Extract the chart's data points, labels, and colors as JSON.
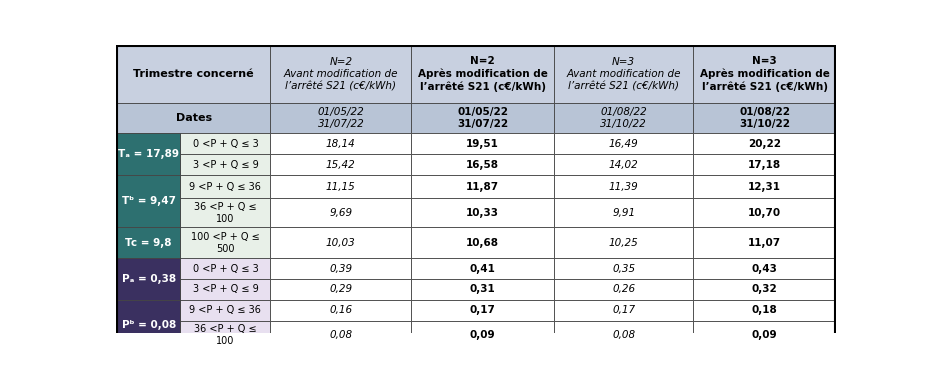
{
  "title_row_left": "Trimestre concerné",
  "title_row_cols": [
    "N=2\nAvant modification de\nl’arrêté S21 (c€/kWh)",
    "N=2\nAprès modification de\nl’arrêté S21 (c€/kWh)",
    "N=3\nAvant modification de\nl’arrêté S21 (c€/kWh)",
    "N=3\nAprès modification de\nl’arrêté S21 (c€/kWh)"
  ],
  "title_row_bold": [
    false,
    true,
    false,
    true
  ],
  "dates_left": "Dates",
  "dates_cols": [
    "01/05/22\n31/07/22",
    "01/05/22\n31/07/22",
    "01/08/22\n31/10/22",
    "01/08/22\n31/10/22"
  ],
  "dates_bold": [
    false,
    true,
    false,
    true
  ],
  "rows": [
    {
      "label": "Tₐ = 17,89",
      "sub": "0 <P + Q ≤ 3",
      "v1": "18,14",
      "v2": "19,51",
      "v3": "16,49",
      "v4": "20,22"
    },
    {
      "label": "",
      "sub": "3 <P + Q ≤ 9",
      "v1": "15,42",
      "v2": "16,58",
      "v3": "14,02",
      "v4": "17,18"
    },
    {
      "label": "Tᵇ = 9,47",
      "sub": "9 <P + Q ≤ 36",
      "v1": "11,15",
      "v2": "11,87",
      "v3": "11,39",
      "v4": "12,31"
    },
    {
      "label": "",
      "sub": "36 <P + Q ≤\n100",
      "v1": "9,69",
      "v2": "10,33",
      "v3": "9,91",
      "v4": "10,70"
    },
    {
      "label": "Tc = 9,8",
      "sub": "100 <P + Q ≤\n500",
      "v1": "10,03",
      "v2": "10,68",
      "v3": "10,25",
      "v4": "11,07"
    },
    {
      "label": "Pₐ = 0,38",
      "sub": "0 <P + Q ≤ 3",
      "v1": "0,39",
      "v2": "0,41",
      "v3": "0,35",
      "v4": "0,43"
    },
    {
      "label": "",
      "sub": "3 <P + Q ≤ 9",
      "v1": "0,29",
      "v2": "0,31",
      "v3": "0,26",
      "v4": "0,32"
    },
    {
      "label": "Pᵇ = 0,08",
      "sub": "9 <P + Q ≤ 36",
      "v1": "0,16",
      "v2": "0,17",
      "v3": "0,17",
      "v4": "0,18"
    },
    {
      "label": "",
      "sub": "36 <P + Q ≤\n100",
      "v1": "0,08",
      "v2": "0,09",
      "v3": "0,08",
      "v4": "0,09"
    }
  ],
  "label_groups": [
    {
      "label": "Tₐ = 17,89",
      "start": 0,
      "end": 1,
      "type": "T"
    },
    {
      "label": "Tᵇ = 9,47",
      "start": 2,
      "end": 3,
      "type": "T"
    },
    {
      "label": "Tc = 9,8",
      "start": 4,
      "end": 4,
      "type": "T"
    },
    {
      "label": "Pₐ = 0,38",
      "start": 5,
      "end": 6,
      "type": "P"
    },
    {
      "label": "Pᵇ = 0,08",
      "start": 7,
      "end": 8,
      "type": "P"
    }
  ],
  "header_bg": "#c8d0e0",
  "header_bold_bg": "#c8d0e0",
  "dates_bg": "#b8c4d6",
  "dates_bold_bg": "#b8c4d6",
  "label_T_bg": "#2d7070",
  "label_P_bg": "#3a3060",
  "sub_T_bg": "#e8f0e8",
  "sub_P_bg": "#e8e0f0",
  "data_normal_bg": "#ffffff",
  "data_bold_bg": "#ffffff",
  "border_color": "#555555",
  "text_white": "#ffffff",
  "text_black": "#000000"
}
